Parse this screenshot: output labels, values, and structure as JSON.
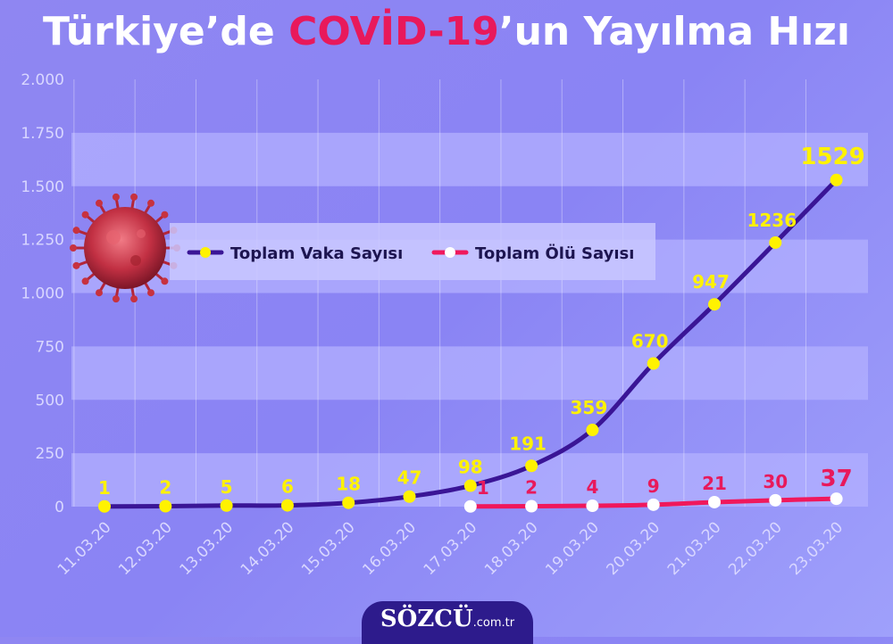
{
  "title": {
    "prefix": "Türkiye’de ",
    "highlight": "COVİD-19",
    "suffix": "’un Yayılma Hızı"
  },
  "brand": {
    "name": "SÖZCÜ",
    "suffix": ".com.tr"
  },
  "colors": {
    "cases_line": "#3a1596",
    "cases_marker": "#fff200",
    "cases_label": "#fff200",
    "deaths_line": "#f0185c",
    "deaths_marker": "#ffffff",
    "deaths_label": "#e8195b",
    "band": "#b3b0ff",
    "tick": "#d9d7ff"
  },
  "chart_data": {
    "type": "line",
    "title": "Türkiye’de COVİD-19’un Yayılma Hızı",
    "xlabel": "",
    "ylabel": "",
    "ylim": [
      0,
      2000
    ],
    "yticks": [
      0,
      250,
      500,
      750,
      1000,
      1250,
      1500,
      1750,
      2000
    ],
    "ytick_labels": [
      "0",
      "250",
      "500",
      "750",
      "1.000",
      "1.250",
      "1.500",
      "1.750",
      "2.000"
    ],
    "categories": [
      "11.03.20",
      "12.03.20",
      "13.03.20",
      "14.03.20",
      "15.03.20",
      "16.03.20",
      "17.03.20",
      "18.03.20",
      "19.03.20",
      "20.03.20",
      "21.03.20",
      "22.03.20",
      "23.03.20"
    ],
    "legend": "top-left",
    "grid": true,
    "series": [
      {
        "name": "Toplam Vaka Sayısı",
        "values": [
          1,
          2,
          5,
          6,
          18,
          47,
          98,
          191,
          359,
          670,
          947,
          1236,
          1529
        ]
      },
      {
        "name": "Toplam Ölü Sayısı",
        "values": [
          null,
          null,
          null,
          null,
          null,
          null,
          1,
          2,
          4,
          9,
          21,
          30,
          37
        ]
      }
    ]
  }
}
